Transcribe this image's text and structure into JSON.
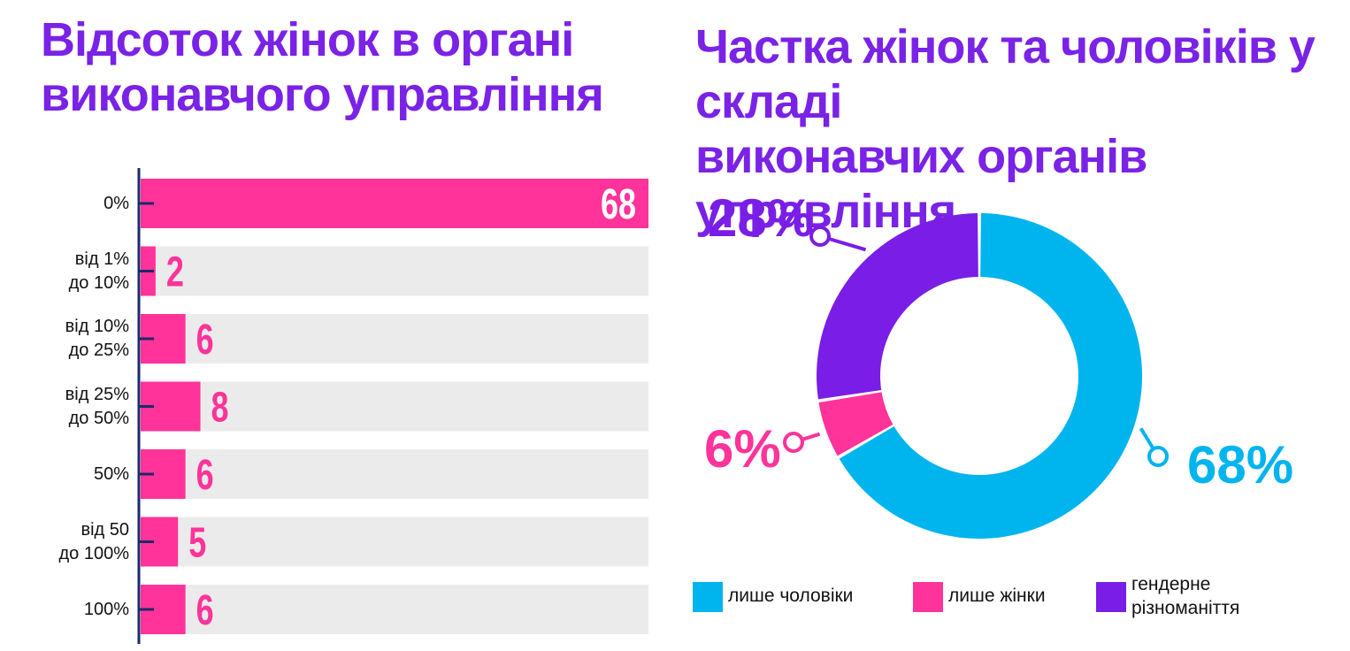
{
  "colors": {
    "title": "#7a22e6",
    "women_bar": "#ff3399",
    "bar_track": "#ebebeb",
    "axis": "#1a2a6b",
    "men_only": "#00b4ee",
    "women_only": "#ff3399",
    "diversity": "#7a1de6",
    "inside_label": "#ffffff"
  },
  "left": {
    "title_line1": "Відсоток жінок в органі",
    "title_line2": "виконавчого управління"
  },
  "right": {
    "title_line1": "Частка жінок та чоловіків у складі",
    "title_line2": "виконавчих органів управління"
  },
  "chart_data": [
    {
      "type": "bar",
      "orientation": "horizontal",
      "title": "Відсоток жінок в органі виконавчого управління",
      "categories": [
        [
          "0%"
        ],
        [
          "від 1%",
          "до 10%"
        ],
        [
          "від 10%",
          "до 25%"
        ],
        [
          "від 25%",
          "до 50%"
        ],
        [
          "50%"
        ],
        [
          "від 50",
          "до 100%"
        ],
        [
          "100%"
        ]
      ],
      "values": [
        68,
        2,
        6,
        8,
        6,
        5,
        6
      ],
      "value_labels": [
        "68",
        "2",
        "6",
        "8",
        "6",
        "5",
        "6"
      ],
      "xlim": [
        0,
        68
      ],
      "grid": false
    },
    {
      "type": "pie",
      "donut": true,
      "title": "Частка жінок та чоловіків у складі виконавчих органів управління",
      "slices": [
        {
          "label": "лише чоловіки",
          "value": 68,
          "display": "68%",
          "color": "#00b4ee"
        },
        {
          "label": "лише жінки",
          "value": 6,
          "display": "6%",
          "color": "#ff3399"
        },
        {
          "label": "гендерне різноманіття",
          "value": 28,
          "display": "28%",
          "color": "#7a1de6"
        }
      ],
      "legend": {
        "placement": "bottom",
        "items": [
          {
            "lines": [
              "лише чоловіки"
            ],
            "color": "#00b4ee"
          },
          {
            "lines": [
              "лише жінки"
            ],
            "color": "#ff3399"
          },
          {
            "lines": [
              "гендерне",
              "різноманіття"
            ],
            "color": "#7a1de6"
          }
        ]
      }
    }
  ]
}
